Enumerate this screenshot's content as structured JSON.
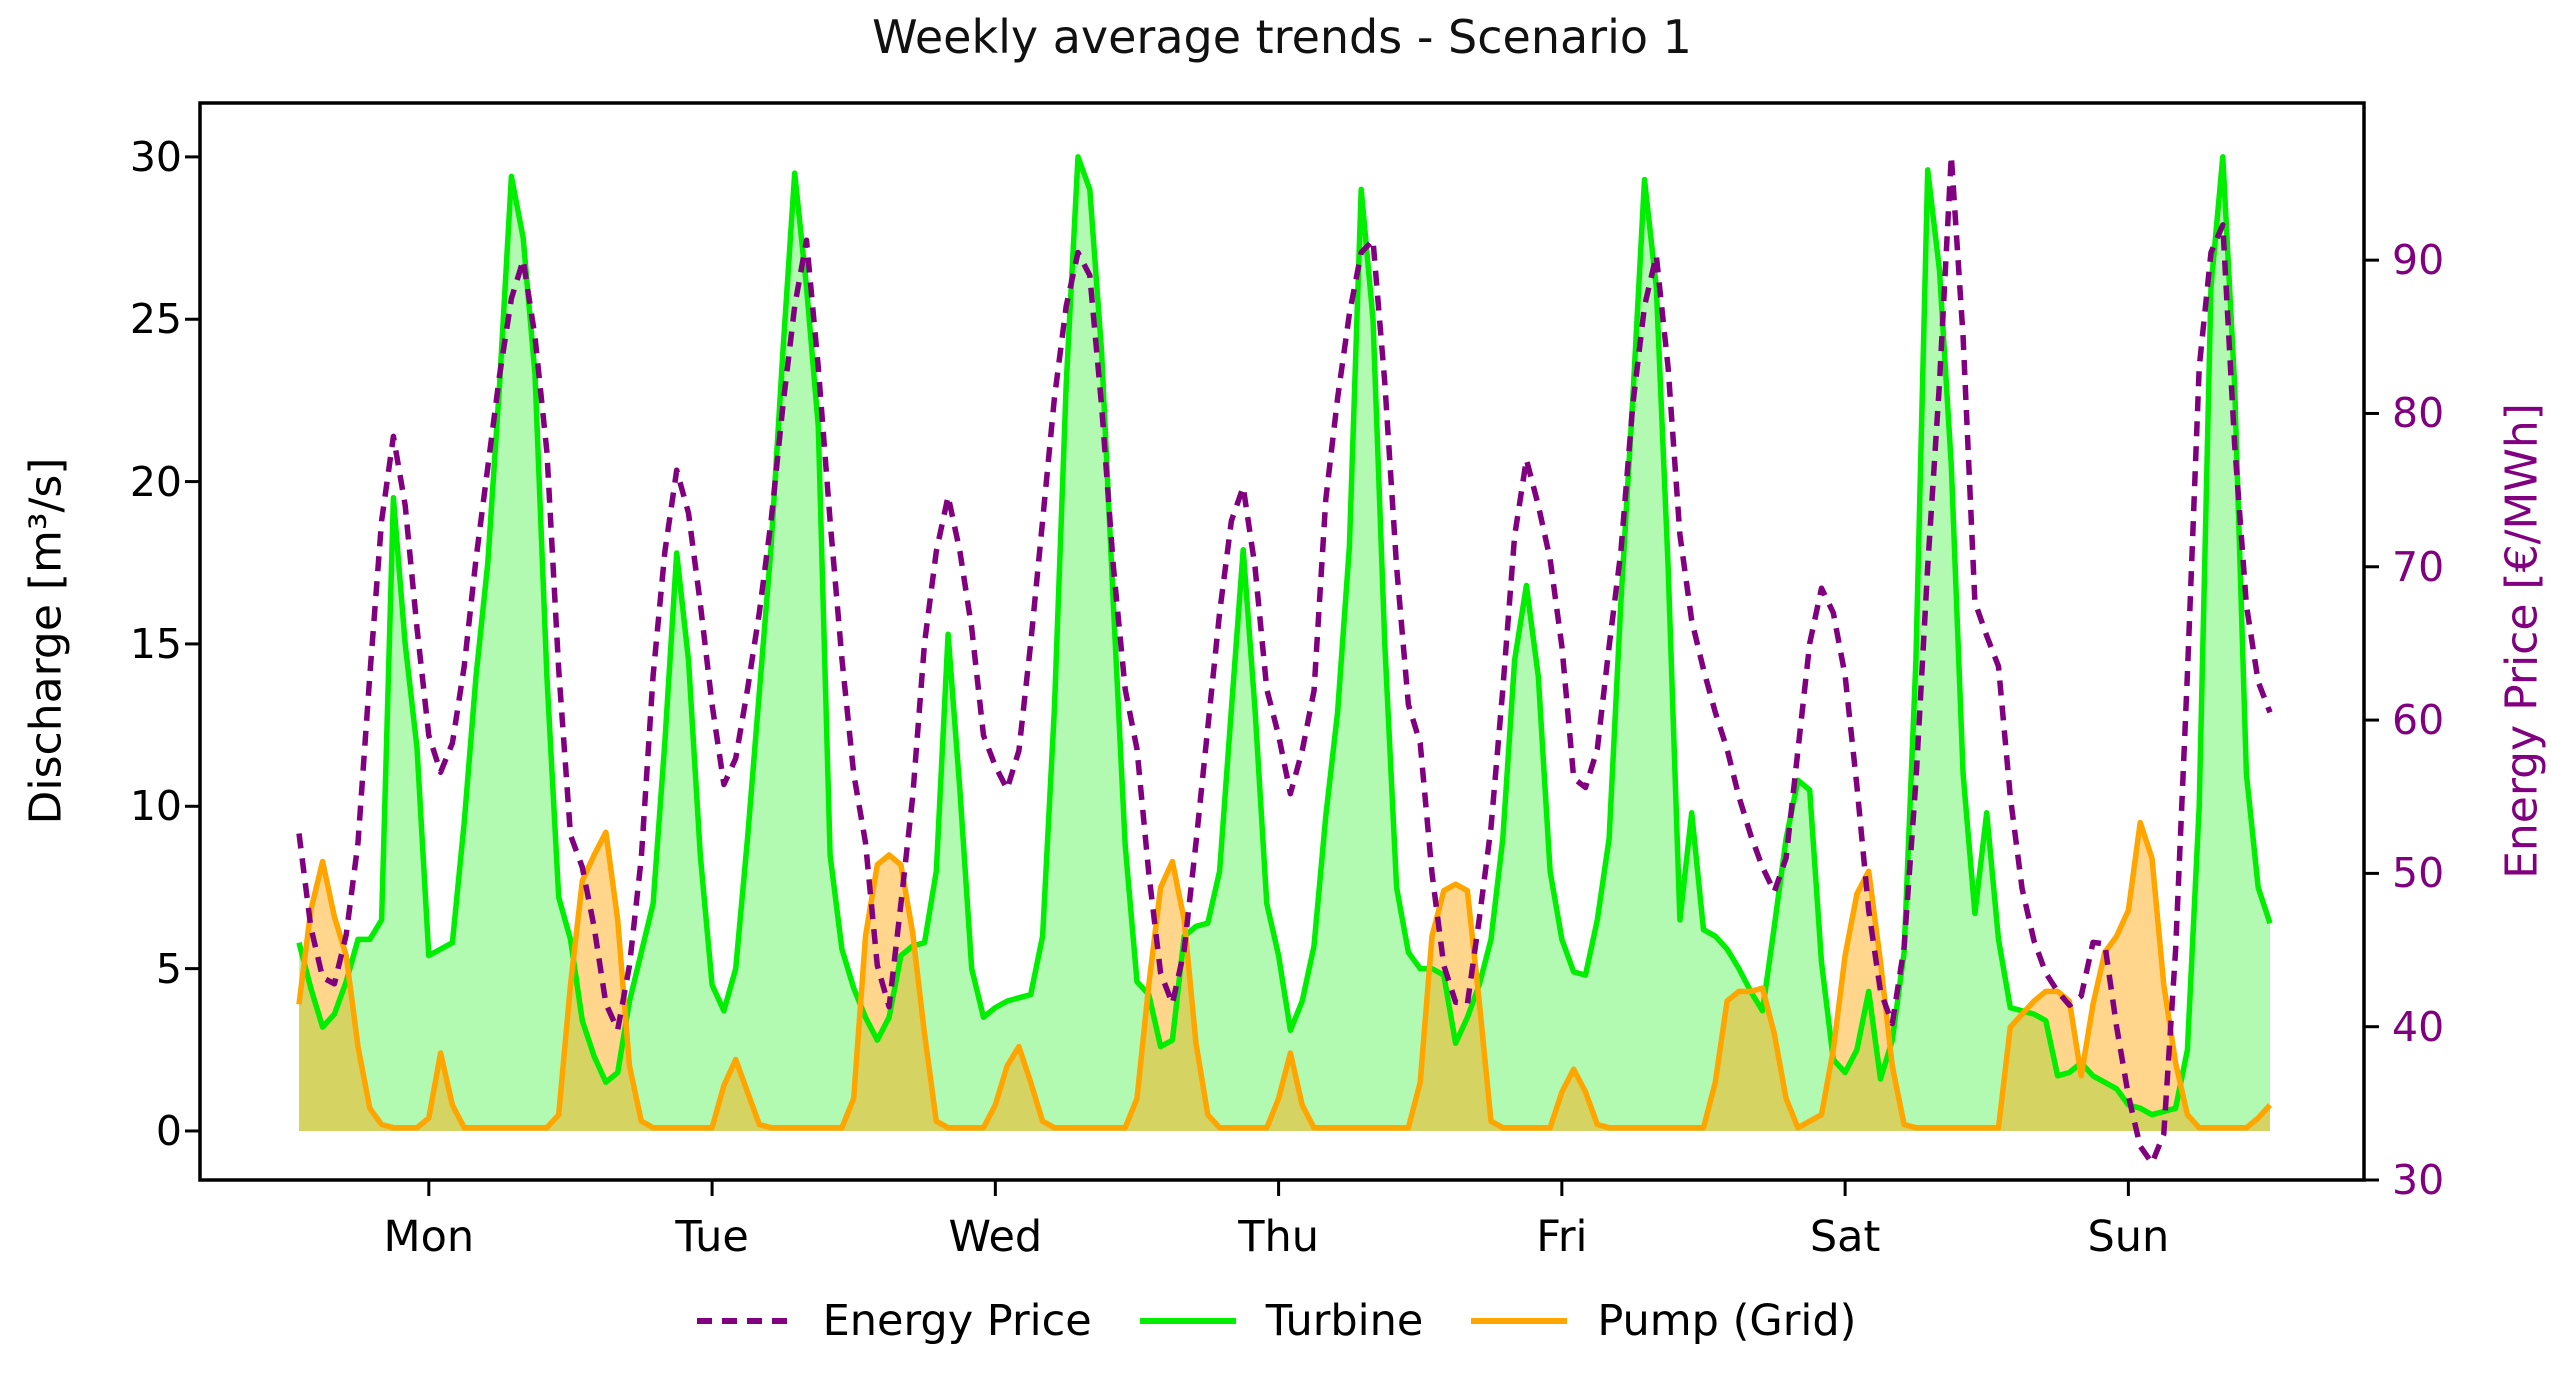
{
  "title": "Weekly average trends - Scenario 1",
  "chart_data": {
    "type": "line",
    "title": "Weekly average trends - Scenario 1",
    "x_description": "168 hourly values spanning Mon 01:00 through Sun 24:00; day labels centered at noon",
    "x_axis": {
      "labels": [
        "Mon",
        "Tue",
        "Wed",
        "Thu",
        "Fri",
        "Sat",
        "Sun"
      ]
    },
    "left_axis": {
      "label": "Discharge [m³/s]",
      "ticks": [
        0,
        5,
        10,
        15,
        20,
        25,
        30
      ],
      "ylim": [
        -1.51,
        31.66
      ],
      "color": "#000000"
    },
    "right_axis": {
      "label": "Energy Price [€/MWh]",
      "ticks": [
        30,
        40,
        50,
        60,
        70,
        80,
        90
      ],
      "ylim": [
        30,
        100.25
      ],
      "color": "#800080"
    },
    "grid": false,
    "legend_position": "bottom center",
    "colors": {
      "price": "#800080",
      "turbine": "#00ee00",
      "pump": "#ffa500",
      "turbine_fill_alpha": 0.3,
      "pump_fill_alpha": 0.45
    },
    "series": [
      {
        "name": "Energy Price",
        "axis": "right",
        "style": "dashed",
        "color": "#800080",
        "values": [
          52.6,
          46.5,
          43.2,
          42.8,
          46.0,
          52.0,
          62.9,
          73.0,
          78.5,
          74.0,
          66.0,
          59.0,
          56.6,
          58.5,
          63.5,
          70.5,
          76.5,
          82.5,
          87.5,
          90.0,
          85.0,
          77.5,
          63.3,
          52.5,
          50.4,
          46.5,
          41.5,
          39.8,
          44.0,
          51.0,
          62.9,
          71.0,
          76.3,
          73.5,
          67.6,
          61.0,
          55.8,
          57.5,
          62.0,
          67.0,
          73.0,
          80.5,
          87.0,
          91.3,
          83.0,
          73.0,
          64.0,
          56.5,
          52.0,
          44.0,
          41.3,
          48.0,
          55.0,
          65.0,
          71.0,
          74.6,
          71.0,
          66.0,
          59.0,
          57.0,
          55.5,
          58.0,
          65.0,
          73.0,
          81.0,
          87.0,
          90.5,
          89.0,
          80.5,
          70.0,
          62.0,
          58.1,
          50.0,
          43.5,
          41.5,
          45.0,
          52.0,
          59.5,
          67.0,
          73.0,
          75.2,
          70.0,
          62.0,
          59.0,
          55.2,
          58.0,
          61.9,
          74.4,
          81.0,
          86.5,
          90.5,
          91.3,
          82.0,
          70.0,
          61.0,
          58.5,
          50.0,
          44.0,
          41.6,
          41.5,
          47.0,
          53.0,
          62.0,
          72.0,
          77.0,
          74.0,
          70.5,
          64.8,
          56.2,
          55.6,
          58.1,
          64.8,
          71.0,
          80.5,
          87.0,
          90.3,
          83.0,
          72.1,
          66.5,
          63.3,
          60.5,
          58.1,
          55.0,
          52.5,
          50.4,
          48.8,
          51.0,
          58.0,
          65.0,
          68.6,
          67.0,
          62.9,
          55.7,
          47.6,
          42.3,
          40.2,
          45.2,
          56.0,
          70.0,
          82.0,
          96.8,
          85.0,
          67.7,
          65.5,
          63.5,
          55.0,
          49.0,
          45.6,
          43.5,
          42.3,
          41.4,
          42.0,
          45.5,
          45.4,
          40.0,
          35.5,
          32.2,
          31.1,
          33.0,
          45.0,
          63.0,
          83.0,
          90.5,
          92.3,
          78.0,
          67.5,
          62.5,
          60.5
        ]
      },
      {
        "name": "Turbine",
        "axis": "left",
        "style": "solid-filled",
        "color": "#00ee00",
        "values": [
          5.8,
          4.4,
          3.2,
          3.6,
          4.6,
          5.9,
          5.9,
          6.5,
          19.5,
          15.0,
          11.8,
          5.4,
          5.6,
          5.8,
          9.5,
          14.0,
          17.5,
          23.0,
          29.4,
          27.5,
          23.3,
          14.0,
          7.2,
          5.9,
          3.4,
          2.3,
          1.5,
          1.8,
          4.0,
          5.5,
          7.0,
          12.0,
          17.8,
          14.5,
          8.5,
          4.5,
          3.7,
          5.0,
          9.0,
          13.5,
          18.0,
          24.0,
          29.5,
          26.0,
          21.7,
          8.5,
          5.6,
          4.4,
          3.5,
          2.8,
          3.5,
          5.4,
          5.7,
          5.8,
          8.0,
          15.3,
          10.5,
          5.0,
          3.5,
          3.8,
          4.0,
          4.1,
          4.2,
          6.0,
          13.0,
          23.0,
          30.0,
          29.0,
          24.0,
          16.2,
          8.8,
          4.6,
          4.2,
          2.6,
          2.8,
          6.0,
          6.3,
          6.4,
          8.0,
          13.0,
          17.9,
          13.0,
          7.0,
          5.4,
          3.1,
          4.0,
          5.7,
          9.7,
          12.9,
          18.0,
          29.0,
          25.0,
          15.0,
          7.5,
          5.5,
          5.0,
          5.0,
          4.8,
          2.7,
          3.5,
          4.5,
          5.9,
          9.0,
          14.5,
          16.8,
          14.0,
          8.0,
          5.9,
          4.9,
          4.8,
          6.5,
          9.0,
          16.3,
          22.5,
          29.3,
          26.0,
          17.4,
          6.5,
          9.8,
          6.2,
          6.0,
          5.6,
          5.0,
          4.3,
          3.7,
          6.3,
          9.0,
          10.8,
          10.5,
          5.2,
          2.2,
          1.8,
          2.5,
          4.3,
          1.6,
          2.8,
          5.5,
          14.5,
          29.6,
          26.5,
          20.5,
          11.0,
          6.7,
          9.8,
          5.9,
          3.8,
          3.7,
          3.6,
          3.4,
          1.7,
          1.8,
          2.1,
          1.7,
          1.5,
          1.3,
          0.8,
          0.7,
          0.5,
          0.6,
          0.7,
          2.5,
          10.0,
          26.0,
          30.0,
          23.0,
          11.0,
          7.5,
          6.4
        ]
      },
      {
        "name": "Pump (Grid)",
        "axis": "left",
        "style": "solid-filled",
        "color": "#ffa500",
        "values": [
          3.9,
          6.8,
          8.3,
          6.6,
          5.4,
          2.6,
          0.7,
          0.2,
          0.1,
          0.1,
          0.1,
          0.4,
          2.4,
          0.8,
          0.1,
          0.1,
          0.1,
          0.1,
          0.1,
          0.1,
          0.1,
          0.1,
          0.5,
          4.5,
          7.7,
          8.5,
          9.2,
          6.5,
          2.0,
          0.3,
          0.1,
          0.1,
          0.1,
          0.1,
          0.1,
          0.1,
          1.4,
          2.2,
          1.2,
          0.2,
          0.1,
          0.1,
          0.1,
          0.1,
          0.1,
          0.1,
          0.1,
          1.0,
          6.0,
          8.2,
          8.5,
          8.2,
          6.1,
          3.0,
          0.3,
          0.1,
          0.1,
          0.1,
          0.1,
          0.8,
          2.0,
          2.6,
          1.5,
          0.3,
          0.1,
          0.1,
          0.1,
          0.1,
          0.1,
          0.1,
          0.1,
          1.0,
          4.5,
          7.5,
          8.3,
          6.5,
          2.7,
          0.5,
          0.1,
          0.1,
          0.1,
          0.1,
          0.1,
          1.0,
          2.4,
          0.8,
          0.1,
          0.1,
          0.1,
          0.1,
          0.1,
          0.1,
          0.1,
          0.1,
          0.1,
          1.5,
          6.0,
          7.4,
          7.6,
          7.4,
          4.0,
          0.3,
          0.1,
          0.1,
          0.1,
          0.1,
          0.1,
          1.2,
          1.9,
          1.2,
          0.2,
          0.1,
          0.1,
          0.1,
          0.1,
          0.1,
          0.1,
          0.1,
          0.1,
          0.1,
          1.5,
          4.0,
          4.3,
          4.3,
          4.4,
          3.0,
          1.0,
          0.1,
          0.3,
          0.5,
          2.5,
          5.4,
          7.3,
          8.0,
          5.2,
          2.0,
          0.2,
          0.1,
          0.1,
          0.1,
          0.1,
          0.1,
          0.1,
          0.1,
          0.1,
          3.2,
          3.6,
          4.0,
          4.3,
          4.3,
          4.0,
          1.7,
          3.9,
          5.5,
          6.0,
          6.8,
          9.5,
          8.4,
          4.5,
          2.1,
          0.5,
          0.1,
          0.1,
          0.1,
          0.1,
          0.1,
          0.4,
          0.8
        ]
      }
    ]
  }
}
